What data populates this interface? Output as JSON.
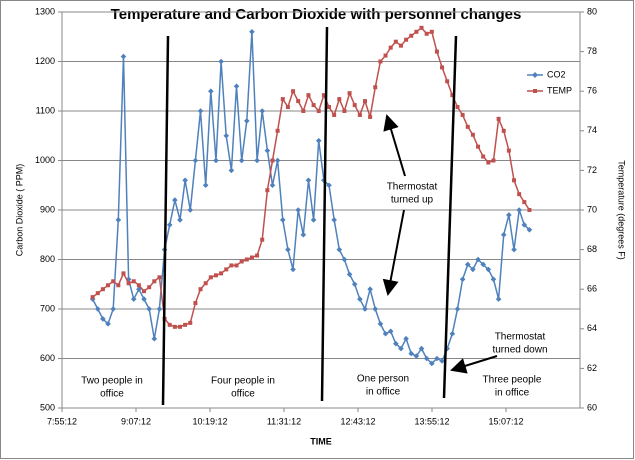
{
  "chart_data": {
    "type": "line",
    "title": "Temperature and Carbon Dioxide with personnel changes",
    "x_label": "TIME",
    "y_label": "Carbon Dioxide ( PPM)",
    "y2_label": "Temperature (degrees F)",
    "xlim": [
      475.2,
      979.2
    ],
    "xticks": [
      {
        "value": 475.2,
        "label": "7:55:12"
      },
      {
        "value": 547.2,
        "label": "9:07:12"
      },
      {
        "value": 619.2,
        "label": "10:19:12"
      },
      {
        "value": 691.2,
        "label": "11:31:12"
      },
      {
        "value": 763.2,
        "label": "12:43:12"
      },
      {
        "value": 835.2,
        "label": "13:55:12"
      },
      {
        "value": 907.2,
        "label": "15:07:12"
      }
    ],
    "ylim": [
      500,
      1300
    ],
    "yticks": [
      500,
      600,
      700,
      800,
      900,
      1000,
      1100,
      1200,
      1300
    ],
    "y2lim": [
      60,
      80
    ],
    "y2ticks": [
      60,
      62,
      64,
      66,
      68,
      70,
      72,
      74,
      76,
      78,
      80
    ],
    "grid": true,
    "legend": "right",
    "x": [
      505,
      510,
      515,
      520,
      525,
      530,
      535,
      540,
      545,
      550,
      555,
      560,
      565,
      570,
      575,
      580,
      585,
      590,
      595,
      600,
      605,
      610,
      615,
      620,
      625,
      630,
      635,
      640,
      645,
      650,
      655,
      660,
      665,
      670,
      675,
      680,
      685,
      690,
      695,
      700,
      705,
      710,
      715,
      720,
      725,
      730,
      735,
      740,
      745,
      750,
      755,
      760,
      765,
      770,
      775,
      780,
      785,
      790,
      795,
      800,
      805,
      810,
      815,
      820,
      825,
      830,
      835,
      840,
      845,
      850,
      855,
      860,
      865,
      870,
      875,
      880,
      885,
      890,
      895,
      900,
      905,
      910,
      915,
      920,
      925,
      930
    ],
    "series": [
      {
        "name": "CO2",
        "color": "#4f81bd",
        "marker": "diamond",
        "values": [
          720,
          700,
          680,
          670,
          700,
          880,
          1210,
          760,
          720,
          740,
          720,
          700,
          640,
          700,
          820,
          870,
          920,
          880,
          960,
          900,
          1000,
          1100,
          950,
          1140,
          1000,
          1200,
          1050,
          980,
          1150,
          1000,
          1080,
          1260,
          1000,
          1100,
          1020,
          950,
          1000,
          880,
          820,
          780,
          900,
          850,
          960,
          880,
          1040,
          960,
          950,
          880,
          820,
          800,
          770,
          750,
          720,
          700,
          740,
          700,
          670,
          650,
          655,
          630,
          620,
          640,
          610,
          605,
          620,
          600,
          590,
          600,
          595,
          620,
          650,
          700,
          760,
          790,
          780,
          800,
          790,
          780,
          760,
          720,
          850,
          890,
          820,
          900,
          870,
          860
        ]
      },
      {
        "name": "TEMP",
        "color": "#c0504d",
        "marker": "square",
        "axis": "y2",
        "values": [
          65.6,
          65.8,
          66,
          66.2,
          66.4,
          66.2,
          66.8,
          66.3,
          66.4,
          66.2,
          65.9,
          66.1,
          66.4,
          66.6,
          64.5,
          64.2,
          64.1,
          64.1,
          64.2,
          64.3,
          65.3,
          66,
          66.3,
          66.6,
          66.7,
          66.8,
          67,
          67.2,
          67.2,
          67.4,
          67.5,
          67.6,
          67.7,
          68.5,
          71,
          72.5,
          74,
          75.6,
          75.2,
          76,
          75.5,
          75,
          75.8,
          75.3,
          75,
          75.8,
          75.2,
          74.8,
          75.6,
          75,
          75.9,
          75.3,
          74.8,
          75.5,
          74.7,
          76.2,
          77.5,
          77.8,
          78.2,
          78.5,
          78.3,
          78.6,
          78.8,
          79,
          79.2,
          78.9,
          79,
          78,
          77.2,
          76.5,
          75.8,
          75.2,
          74.8,
          74.2,
          73.8,
          73.2,
          72.7,
          72.4,
          72.5,
          74.6,
          74,
          73,
          71.5,
          70.8,
          70.4,
          70
        ]
      }
    ],
    "annotations": [
      {
        "lines": [
          "Two people in",
          "office"
        ]
      },
      {
        "lines": [
          "Four people in",
          "office"
        ]
      },
      {
        "lines": [
          "One person",
          "in office"
        ]
      },
      {
        "lines": [
          "Three people",
          "in office"
        ]
      },
      {
        "lines": [
          "Thermostat",
          "turned up"
        ]
      },
      {
        "lines": [
          "Thermostat",
          "turned down"
        ]
      }
    ]
  }
}
